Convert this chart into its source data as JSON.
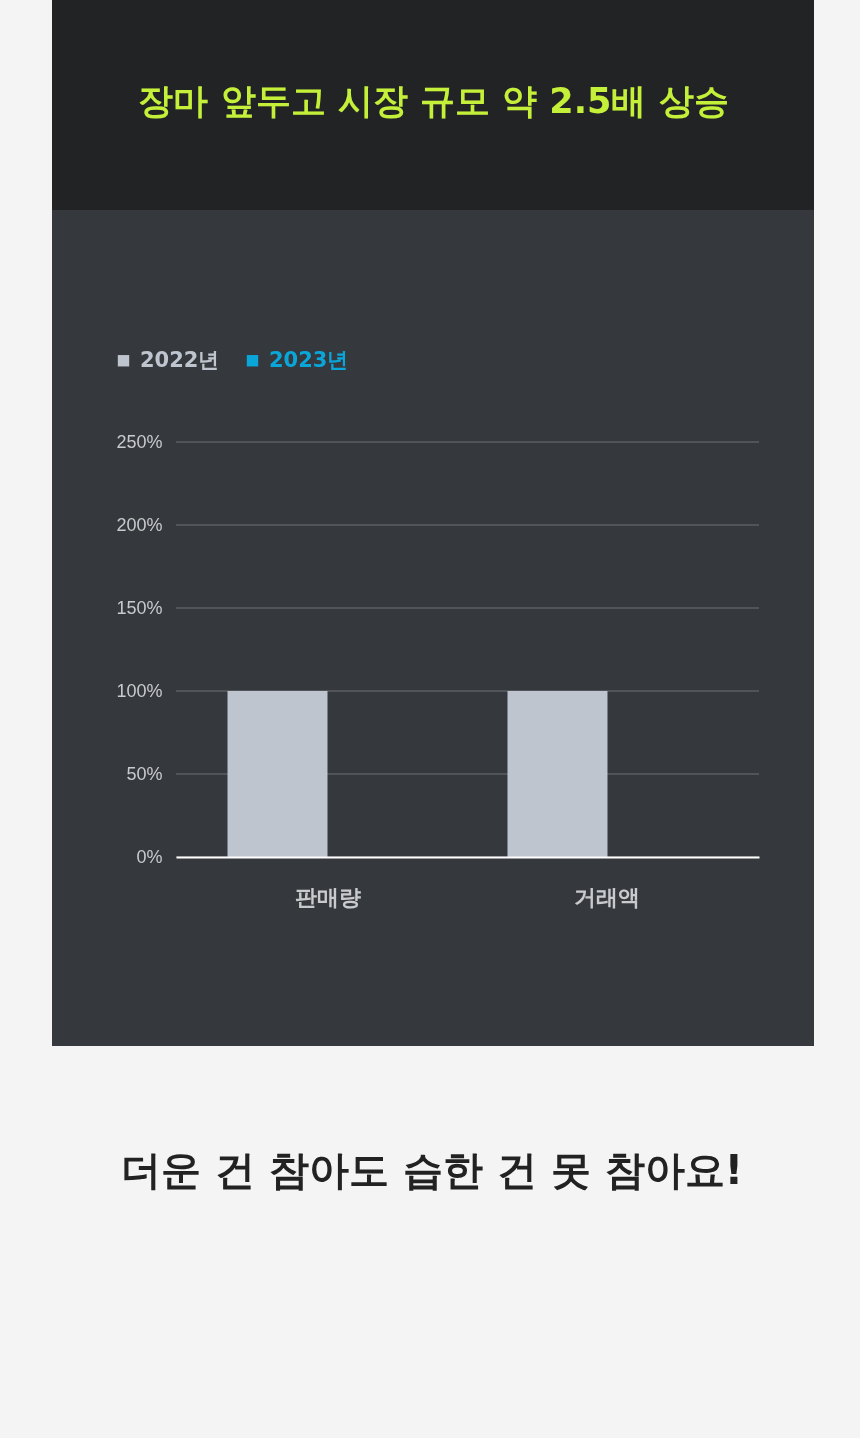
{
  "chart_data": {
    "type": "bar",
    "title": "장마 앞두고 시장 규모 약 2.5배 상승",
    "categories": [
      "판매량",
      "거래액"
    ],
    "series": [
      {
        "name": "2022년",
        "color": "#bec5ce",
        "values": [
          100,
          100
        ]
      },
      {
        "name": "2023년",
        "color": "#0aa6da",
        "values": [
          null,
          null
        ]
      }
    ],
    "ylim": [
      0,
      250
    ],
    "yticks": [
      {
        "value": 0,
        "label": "0%"
      },
      {
        "value": 50,
        "label": "50%"
      },
      {
        "value": 100,
        "label": "100%"
      },
      {
        "value": 150,
        "label": "150%"
      },
      {
        "value": 200,
        "label": "200%"
      },
      {
        "value": 250,
        "label": "250%"
      }
    ],
    "grid": "y",
    "legend": "top left",
    "annotations": [
      "더운 건 참아도 습한 건 못 참아요!"
    ]
  }
}
